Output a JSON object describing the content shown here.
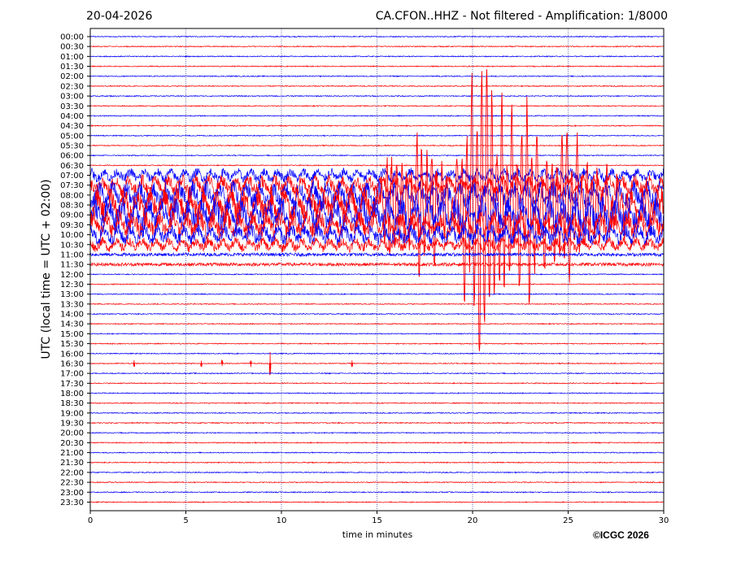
{
  "header": {
    "date": "20-04-2026",
    "station_info": "CA.CFON..HHZ - Not filtered - Amplification: 1/8000"
  },
  "copyright": "©ICGC 2026",
  "colors": {
    "odd_trace": "#0000ff",
    "even_trace": "#ff0000",
    "grid": "#000080"
  },
  "chart_data": {
    "type": "line",
    "title": "CA.CFON..HHZ - Not filtered - Amplification: 1/8000",
    "xlabel": "time in minutes",
    "ylabel": "UTC (local time = UTC + 02:00)",
    "xlim": [
      0,
      30
    ],
    "x_ticks": [
      0,
      5,
      10,
      15,
      20,
      25,
      30
    ],
    "grid": "vertical dotted lines every 5 minutes",
    "y_ticks": [
      "00:00",
      "00:30",
      "01:00",
      "01:30",
      "02:00",
      "02:30",
      "03:00",
      "03:30",
      "04:00",
      "04:30",
      "05:00",
      "05:30",
      "06:00",
      "06:30",
      "07:00",
      "07:30",
      "08:00",
      "08:30",
      "09:00",
      "09:30",
      "10:00",
      "10:30",
      "11:00",
      "11:30",
      "12:00",
      "12:30",
      "13:00",
      "13:30",
      "14:00",
      "14:30",
      "15:00",
      "15:30",
      "16:00",
      "16:30",
      "17:00",
      "17:30",
      "18:00",
      "18:30",
      "19:00",
      "19:30",
      "20:00",
      "20:30",
      "21:00",
      "21:30",
      "22:00",
      "22:30",
      "23:00",
      "23:30"
    ],
    "trace_colors": "alternating blue (00:00) and red (00:30) per row",
    "events": [
      {
        "row": "07:00-11:00",
        "x_start": 0,
        "x_end": 30,
        "description": "large amplitude noisy oscillations"
      },
      {
        "row": "08:30",
        "x_start": 15,
        "x_end": 23.5,
        "description": "earthquake teleseismic wave train, max amplitude near 20.4 min"
      },
      {
        "row": "16:30",
        "x_positions": [
          2.3,
          5.8,
          6.9,
          8.4,
          9.4,
          13.7
        ],
        "description": "small spikes"
      }
    ]
  }
}
